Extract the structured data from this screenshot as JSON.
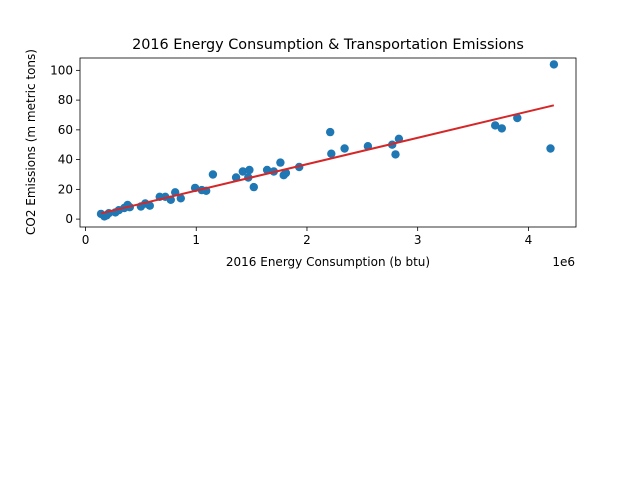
{
  "chart_data": {
    "type": "scatter",
    "title": "2016 Energy Consumption & Transportation Emissions",
    "xlabel": "2016 Energy Consumption (b btu)",
    "ylabel": "CO2 Emissions (m metric tons)",
    "x_offset_label": "1e6",
    "xlim": [
      -0.05,
      4.43
    ],
    "ylim": [
      -5.3,
      108.3
    ],
    "xticks": [
      0,
      1,
      2,
      3,
      4
    ],
    "xtick_labels": [
      "0",
      "1",
      "2",
      "3",
      "4"
    ],
    "yticks": [
      0,
      20,
      40,
      60,
      80,
      100
    ],
    "ytick_labels": [
      "0",
      "20",
      "40",
      "60",
      "80",
      "100"
    ],
    "grid": false,
    "series": [
      {
        "color": "#1f77b4",
        "points": [
          [
            0.14,
            3.5
          ],
          [
            0.17,
            1.8
          ],
          [
            0.19,
            2.5
          ],
          [
            0.21,
            4.0
          ],
          [
            0.27,
            4.5
          ],
          [
            0.3,
            6.0
          ],
          [
            0.35,
            7.5
          ],
          [
            0.38,
            9.5
          ],
          [
            0.4,
            8.0
          ],
          [
            0.5,
            8.5
          ],
          [
            0.54,
            10.5
          ],
          [
            0.58,
            9.0
          ],
          [
            0.67,
            15.0
          ],
          [
            0.72,
            15.0
          ],
          [
            0.77,
            13.0
          ],
          [
            0.81,
            18.0
          ],
          [
            0.86,
            14.0
          ],
          [
            0.99,
            21.0
          ],
          [
            1.05,
            19.5
          ],
          [
            1.09,
            19.0
          ],
          [
            1.15,
            30.0
          ],
          [
            1.36,
            28.0
          ],
          [
            1.42,
            32.0
          ],
          [
            1.47,
            28.0
          ],
          [
            1.48,
            33.0
          ],
          [
            1.52,
            21.5
          ],
          [
            1.64,
            33.0
          ],
          [
            1.7,
            32.0
          ],
          [
            1.76,
            38.0
          ],
          [
            1.79,
            29.5
          ],
          [
            1.81,
            31.0
          ],
          [
            1.93,
            35.0
          ],
          [
            2.21,
            58.5
          ],
          [
            2.22,
            44.0
          ],
          [
            2.34,
            47.5
          ],
          [
            2.55,
            49.0
          ],
          [
            2.77,
            50.0
          ],
          [
            2.8,
            43.5
          ],
          [
            2.83,
            54.0
          ],
          [
            3.7,
            63.0
          ],
          [
            3.76,
            61.0
          ],
          [
            3.9,
            68.0
          ],
          [
            4.2,
            47.5
          ],
          [
            4.23,
            104.0
          ]
        ]
      }
    ],
    "regression_line": {
      "color": "#d62728",
      "x": [
        0.14,
        4.23
      ],
      "y": [
        3.9,
        76.5
      ]
    }
  }
}
